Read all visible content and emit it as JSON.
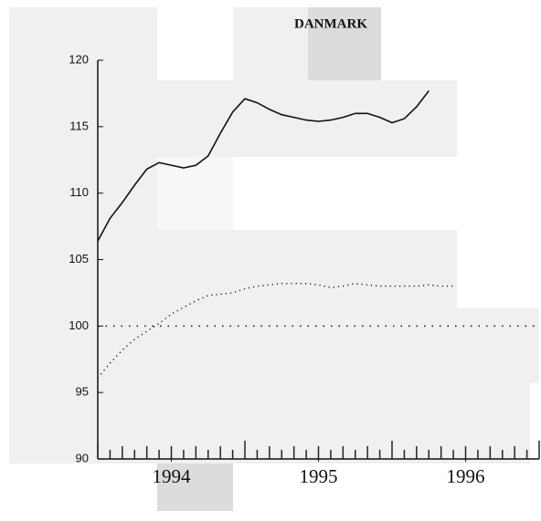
{
  "chart_data": {
    "type": "line",
    "title": "DANMARK",
    "x": [
      1994,
      1994.083,
      1994.167,
      1994.25,
      1994.333,
      1994.417,
      1994.5,
      1994.583,
      1994.667,
      1994.75,
      1994.833,
      1994.917,
      1995,
      1995.083,
      1995.167,
      1995.25,
      1995.333,
      1995.417,
      1995.5,
      1995.583,
      1995.667,
      1995.75,
      1995.833,
      1995.917,
      1996,
      1996.083,
      1996.167,
      1996.25,
      1996.333,
      1996.417
    ],
    "series": [
      {
        "color": "#111111",
        "style": "solid",
        "values": [
          106.4,
          108.1,
          109.3,
          110.6,
          111.8,
          112.3,
          112.1,
          111.9,
          112.1,
          112.8,
          114.5,
          116.1,
          117.1,
          116.8,
          116.3,
          115.9,
          115.7,
          115.5,
          115.4,
          115.5,
          115.7,
          116.0,
          116.0,
          115.7,
          115.3,
          115.6,
          116.5,
          117.7,
          null,
          null
        ]
      },
      {
        "color": "#111111",
        "style": "dotted",
        "values": [
          96.1,
          97.2,
          98.2,
          99.0,
          99.6,
          100.2,
          100.9,
          101.4,
          101.9,
          102.3,
          102.4,
          102.5,
          102.8,
          103.0,
          103.1,
          103.2,
          103.2,
          103.2,
          103.1,
          102.9,
          103.0,
          103.2,
          103.1,
          103.0,
          103.0,
          103.0,
          103.0,
          103.1,
          103.0,
          103.0
        ]
      }
    ],
    "reference_line": 100,
    "xlim": [
      1994,
      1997
    ],
    "xticks": [
      {
        "value": 1994.5,
        "label": "1994"
      },
      {
        "value": 1995.5,
        "label": "1995"
      },
      {
        "value": 1996.5,
        "label": "1996"
      }
    ],
    "ylim": [
      90,
      120
    ],
    "yticks": [
      90,
      95,
      100,
      105,
      110,
      115,
      120
    ]
  }
}
